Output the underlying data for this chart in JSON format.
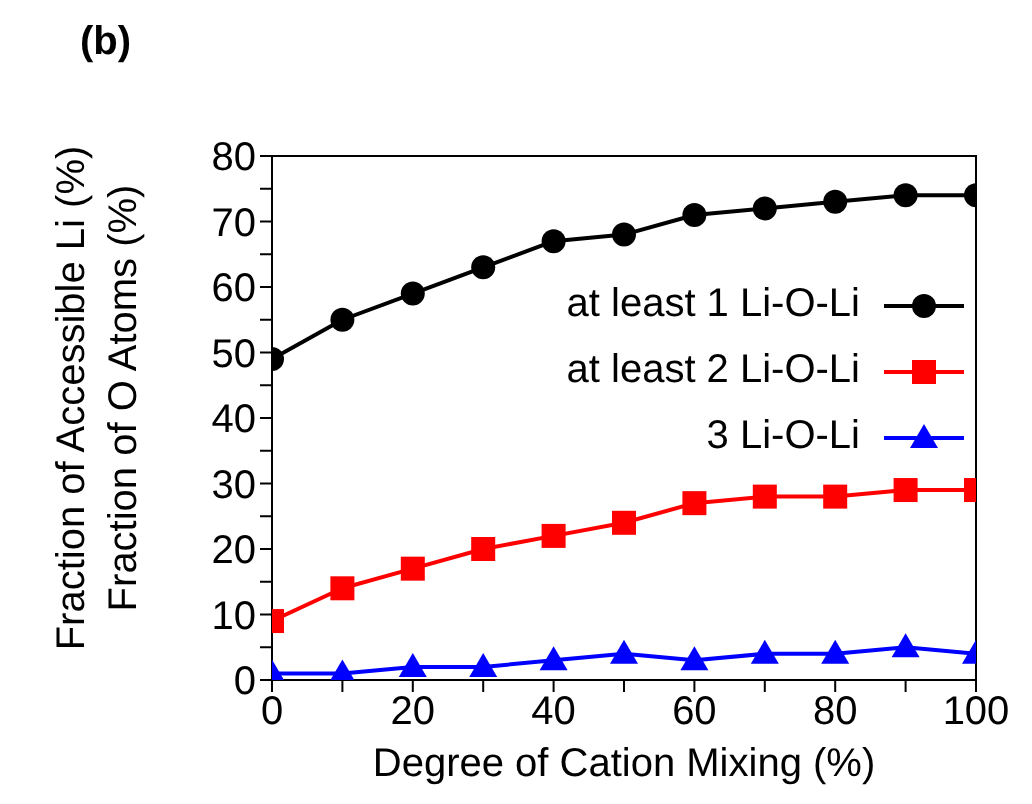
{
  "chart_data": {
    "type": "line",
    "title": "(b)",
    "xlabel": "Degree of Cation Mixing (%)",
    "ylabel": "Fraction of Accessible Li (%)\nFraction of O Atoms (%)",
    "x": [
      0,
      10,
      20,
      30,
      40,
      50,
      60,
      70,
      80,
      90,
      100
    ],
    "series": [
      {
        "name": "at least 1 Li-O-Li",
        "color": "#000000",
        "marker": "circle",
        "values": [
          49,
          55,
          59,
          63,
          67,
          68,
          71,
          72,
          73,
          74,
          74
        ]
      },
      {
        "name": "at least 2 Li-O-Li",
        "color": "#ff0000",
        "marker": "square",
        "values": [
          9,
          14,
          17,
          20,
          22,
          24,
          27,
          28,
          28,
          29,
          29
        ]
      },
      {
        "name": "3 Li-O-Li",
        "color": "#0000ff",
        "marker": "triangle",
        "values": [
          1,
          1,
          2,
          2,
          3,
          4,
          3,
          4,
          4,
          5,
          4
        ]
      }
    ],
    "xlim": [
      0,
      100
    ],
    "xticks": [
      0,
      {
        "value": 10,
        "label": null
      },
      20,
      {
        "value": 30,
        "label": null
      },
      40,
      {
        "value": 50,
        "label": null
      },
      60,
      {
        "value": 70,
        "label": null
      },
      80,
      {
        "value": 90,
        "label": null
      },
      100
    ],
    "ylim": [
      0,
      80
    ],
    "yticks": [
      0,
      {
        "value": 5,
        "label": null
      },
      10,
      {
        "value": 15,
        "label": null
      },
      20,
      {
        "value": 25,
        "label": null
      },
      30,
      {
        "value": 35,
        "label": null
      },
      40,
      {
        "value": 45,
        "label": null
      },
      50,
      {
        "value": 55,
        "label": null
      },
      60,
      {
        "value": 65,
        "label": null
      },
      70,
      {
        "value": 75,
        "label": null
      },
      80
    ],
    "grid": false,
    "legend": "right",
    "line_style": "solid"
  }
}
